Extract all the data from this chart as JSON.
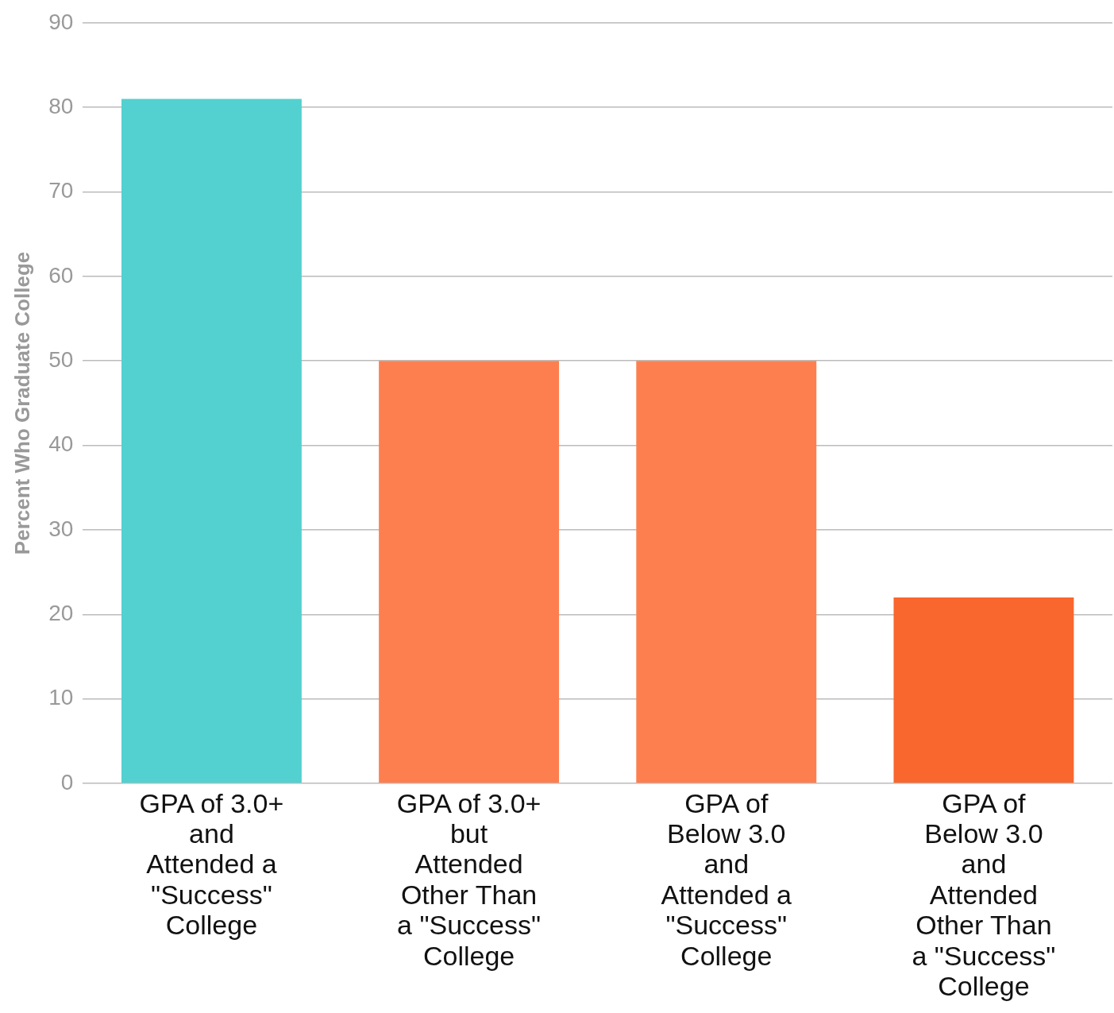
{
  "chart_data": {
    "type": "bar",
    "ylabel": "Percent Who Graduate College",
    "categories": [
      "GPA of 3.0+ and Attended a \"Success\" College",
      "GPA of 3.0+ but Attended Other Than a \"Success\" College",
      "GPA of Below 3.0 and Attended a \"Success\" College",
      "GPA of Below 3.0 and Attended Other Than a \"Success\" College"
    ],
    "values": [
      81,
      50,
      50,
      22
    ],
    "colors": [
      "#52d1d0",
      "#fd7f50",
      "#fd7f50",
      "#f9662e"
    ],
    "ylim": [
      0,
      90
    ],
    "yticks": [
      0,
      10,
      20,
      30,
      40,
      50,
      60,
      70,
      80,
      90
    ],
    "grid": "y",
    "legend": false
  }
}
